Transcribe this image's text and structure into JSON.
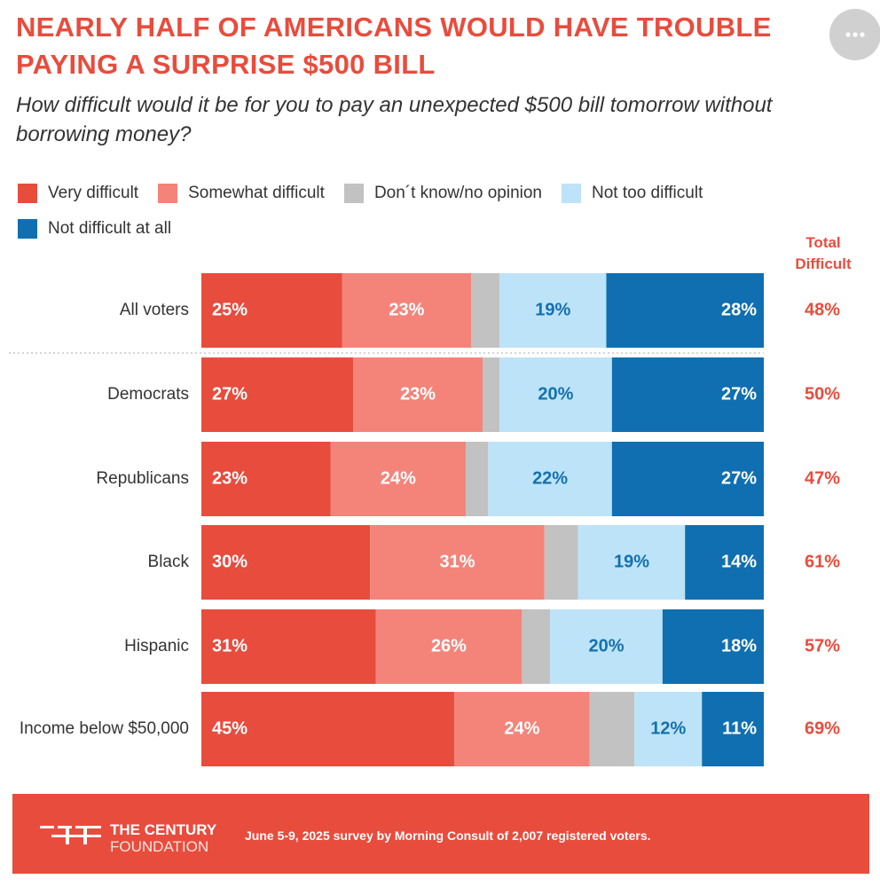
{
  "title": "NEARLY HALF OF AMERICANS WOULD HAVE TROUBLE PAYING A SURPRISE $500 BILL",
  "subtitle": "How difficult would it be for you to pay an unexpected $500 bill tomorrow without borrowing money?",
  "chart_data": {
    "type": "stacked_bar",
    "orientation": "horizontal",
    "categories": [
      "All voters",
      "Democrats",
      "Republicans",
      "Black",
      "Hispanic",
      "Income below $50,000"
    ],
    "series": [
      {
        "name": "Very difficult",
        "color": "#e84c3d",
        "label_color": "#ffffff",
        "values": [
          25,
          27,
          23,
          30,
          31,
          45
        ],
        "value_labels": [
          "25%",
          "27%",
          "23%",
          "30%",
          "31%",
          "45%"
        ]
      },
      {
        "name": "Somewhat difficult",
        "color": "#f4847a",
        "label_color": "#ffffff",
        "values": [
          23,
          23,
          24,
          31,
          26,
          24
        ],
        "value_labels": [
          "23%",
          "23%",
          "24%",
          "31%",
          "26%",
          "24%"
        ]
      },
      {
        "name": "Don´t know/no opinion",
        "color": "#c2c2c2",
        "values": [
          5,
          3,
          4,
          6,
          5,
          8
        ]
      },
      {
        "name": "Not too difficult",
        "color": "#bde3f8",
        "label_color": "#1570ae",
        "values": [
          19,
          20,
          22,
          19,
          20,
          12
        ],
        "value_labels": [
          "19%",
          "20%",
          "22%",
          "19%",
          "20%",
          "12%"
        ]
      },
      {
        "name": "Not difficult at all",
        "color": "#0f6fb1",
        "label_color": "#ffffff",
        "values": [
          28,
          27,
          27,
          14,
          18,
          11
        ],
        "value_labels": [
          "28%",
          "27%",
          "27%",
          "14%",
          "18%",
          "11%"
        ]
      }
    ],
    "totals": {
      "name": "Total Difficult",
      "color": "#e84c3d",
      "values": [
        48,
        50,
        47,
        61,
        57,
        69
      ],
      "value_labels": [
        "48%",
        "50%",
        "47%",
        "61%",
        "57%",
        "69%"
      ]
    }
  },
  "footer": {
    "logo": [
      "THE CENTURY",
      "FOUNDATION"
    ],
    "note": "June 5-9, 2025 survey by Morning Consult of 2,007 registered voters."
  }
}
